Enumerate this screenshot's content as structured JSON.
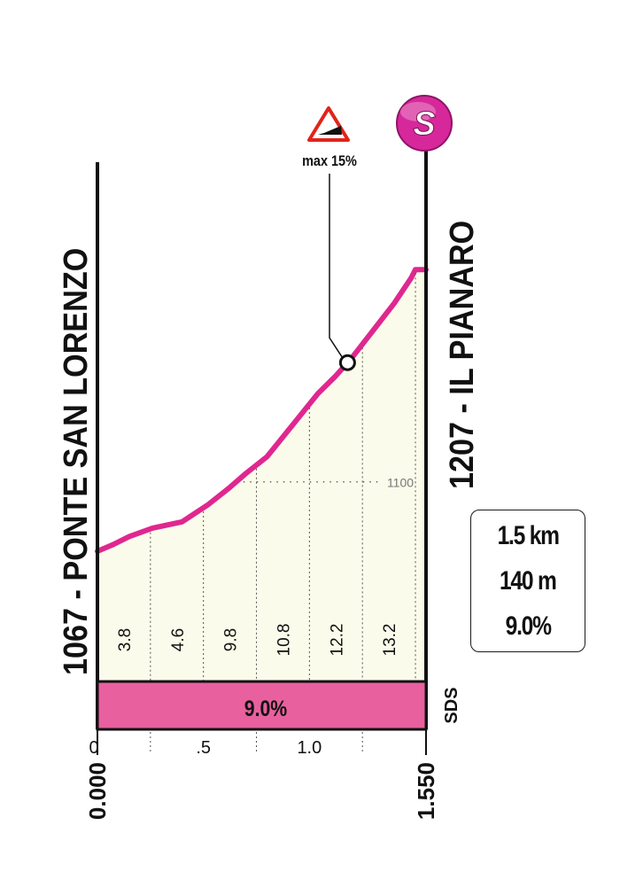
{
  "chart_data": {
    "type": "area",
    "start": {
      "label": "1067 - PONTE SAN LORENZO",
      "altitude": 1067
    },
    "finish": {
      "label": "1207 - IL PIANARO",
      "altitude": 1207
    },
    "x_unit": "km",
    "xlim": [
      0,
      1.55
    ],
    "ylim": [
      1067,
      1207
    ],
    "x_tick_labels": [
      "0",
      ".5",
      "1.0"
    ],
    "x_start_label": "0.000",
    "x_end_label": "1.550",
    "altitude_gridline": {
      "value": 1100,
      "label": "1100"
    },
    "profile": [
      {
        "x": 0.0,
        "y": 1067
      },
      {
        "x": 0.07,
        "y": 1070
      },
      {
        "x": 0.15,
        "y": 1074
      },
      {
        "x": 0.26,
        "y": 1078
      },
      {
        "x": 0.4,
        "y": 1081
      },
      {
        "x": 0.52,
        "y": 1089
      },
      {
        "x": 0.62,
        "y": 1097
      },
      {
        "x": 0.7,
        "y": 1104
      },
      {
        "x": 0.8,
        "y": 1112
      },
      {
        "x": 0.92,
        "y": 1127
      },
      {
        "x": 1.04,
        "y": 1142
      },
      {
        "x": 1.12,
        "y": 1150
      },
      {
        "x": 1.2,
        "y": 1159
      },
      {
        "x": 1.3,
        "y": 1172
      },
      {
        "x": 1.4,
        "y": 1185
      },
      {
        "x": 1.48,
        "y": 1197
      },
      {
        "x": 1.5,
        "y": 1201
      },
      {
        "x": 1.55,
        "y": 1201
      }
    ],
    "segment_gradients": [
      {
        "from": 0.0,
        "to": 0.25,
        "value": "3.8"
      },
      {
        "from": 0.25,
        "to": 0.5,
        "value": "4.6"
      },
      {
        "from": 0.5,
        "to": 0.75,
        "value": "9.8"
      },
      {
        "from": 0.75,
        "to": 1.0,
        "value": "10.8"
      },
      {
        "from": 1.0,
        "to": 1.25,
        "value": "12.2"
      },
      {
        "from": 1.25,
        "to": 1.5,
        "value": "13.2"
      }
    ],
    "gradient_band": {
      "label": "9.0%",
      "color": "#e8609e"
    },
    "max_gradient": {
      "label": "max 15%",
      "x": 1.18
    },
    "sprint_badge": {
      "letter": "S",
      "color": "#d6289a"
    },
    "sds_label": "SDS",
    "summary": {
      "distance": "1.5 km",
      "gain": "140 m",
      "avg_gradient": "9.0%"
    },
    "colors": {
      "line": "#e0278f",
      "fill": "#fbfbeb",
      "axis": "#111111",
      "warning": "#e2231a"
    }
  }
}
